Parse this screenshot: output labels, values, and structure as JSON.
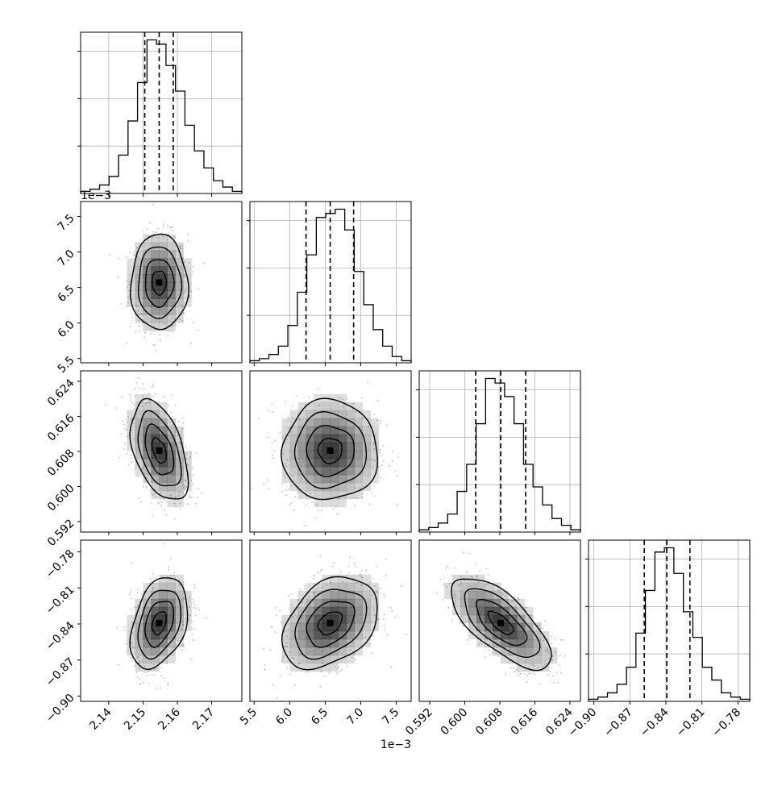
{
  "chart_data": {
    "type": "scatter",
    "variables": [
      {
        "ticks": [
          "2.14",
          "2.15",
          "2.16",
          "2.17"
        ],
        "tick_values": [
          2.14,
          2.15,
          2.16,
          2.17
        ],
        "range": [
          2.1318,
          2.1788
        ],
        "offset_label": "",
        "quantiles": [
          2.1505,
          2.1547,
          2.1588
        ]
      },
      {
        "ticks": [
          "5.5",
          "6.0",
          "6.5",
          "7.0",
          "7.5"
        ],
        "tick_values": [
          5.5,
          6.0,
          6.5,
          7.0,
          7.5
        ],
        "range": [
          5.44,
          7.71
        ],
        "offset_label": "1e−3",
        "quantiles": [
          6.23,
          6.57,
          6.9
        ]
      },
      {
        "ticks": [
          "0.592",
          "0.600",
          "0.608",
          "0.616",
          "0.624"
        ],
        "tick_values": [
          0.592,
          0.6,
          0.608,
          0.616,
          0.624
        ],
        "range": [
          0.5896,
          0.6264
        ],
        "offset_label": "",
        "quantiles": [
          0.6025,
          0.6082,
          0.6139
        ]
      },
      {
        "ticks": [
          "−0.90",
          "−0.87",
          "−0.84",
          "−0.81",
          "−0.78"
        ],
        "tick_values": [
          -0.9,
          -0.87,
          -0.84,
          -0.81,
          -0.78
        ],
        "range": [
          -0.9044,
          -0.7702
        ],
        "offset_label": "",
        "quantiles": [
          -0.858,
          -0.8392,
          -0.82
        ]
      }
    ],
    "histograms": [
      [
        0.5,
        1,
        2,
        4,
        9,
        17,
        26,
        36,
        35,
        30,
        24,
        16,
        10,
        6,
        3,
        1.5,
        0.5
      ],
      [
        0.5,
        1,
        2,
        4,
        9,
        17,
        26,
        35,
        36,
        37,
        32,
        22,
        14,
        8,
        4,
        1.5,
        0.5
      ],
      [
        0.5,
        1,
        2,
        4,
        9,
        15,
        24,
        34,
        33,
        30,
        24,
        15,
        10,
        6,
        3,
        1.5,
        0.5
      ],
      [
        0.5,
        1,
        2,
        4,
        8,
        16,
        26,
        35,
        36,
        30,
        21,
        15,
        8,
        5,
        2,
        1,
        0.5
      ]
    ],
    "pairs": [
      {
        "row": 1,
        "col": 0,
        "center": [
          2.1547,
          6.57
        ],
        "spread": [
          1.0,
          1.0
        ],
        "rho": 0.0
      },
      {
        "row": 2,
        "col": 0,
        "center": [
          2.1547,
          0.6082
        ],
        "spread": [
          1.0,
          1.0
        ],
        "rho": -0.45
      },
      {
        "row": 2,
        "col": 1,
        "center": [
          6.57,
          0.6082
        ],
        "spread": [
          1.0,
          1.0
        ],
        "rho": 0.0
      },
      {
        "row": 3,
        "col": 0,
        "center": [
          2.1547,
          -0.8392
        ],
        "spread": [
          1.0,
          1.0
        ],
        "rho": 0.35
      },
      {
        "row": 3,
        "col": 1,
        "center": [
          6.57,
          -0.8392
        ],
        "spread": [
          1.0,
          1.0
        ],
        "rho": 0.35
      },
      {
        "row": 3,
        "col": 2,
        "center": [
          0.6082,
          -0.8392
        ],
        "spread": [
          1.0,
          1.0
        ],
        "rho": -0.7
      }
    ],
    "contour_levels_sigma": [
      0.5,
      1.0,
      1.5,
      2.0
    ],
    "title": "",
    "grid": true,
    "colors": {
      "hist_line": "#000000",
      "quantile_line": "#000000",
      "points": "#bdbdbd",
      "density": "#000000",
      "grid": "#b0b0b0"
    }
  }
}
